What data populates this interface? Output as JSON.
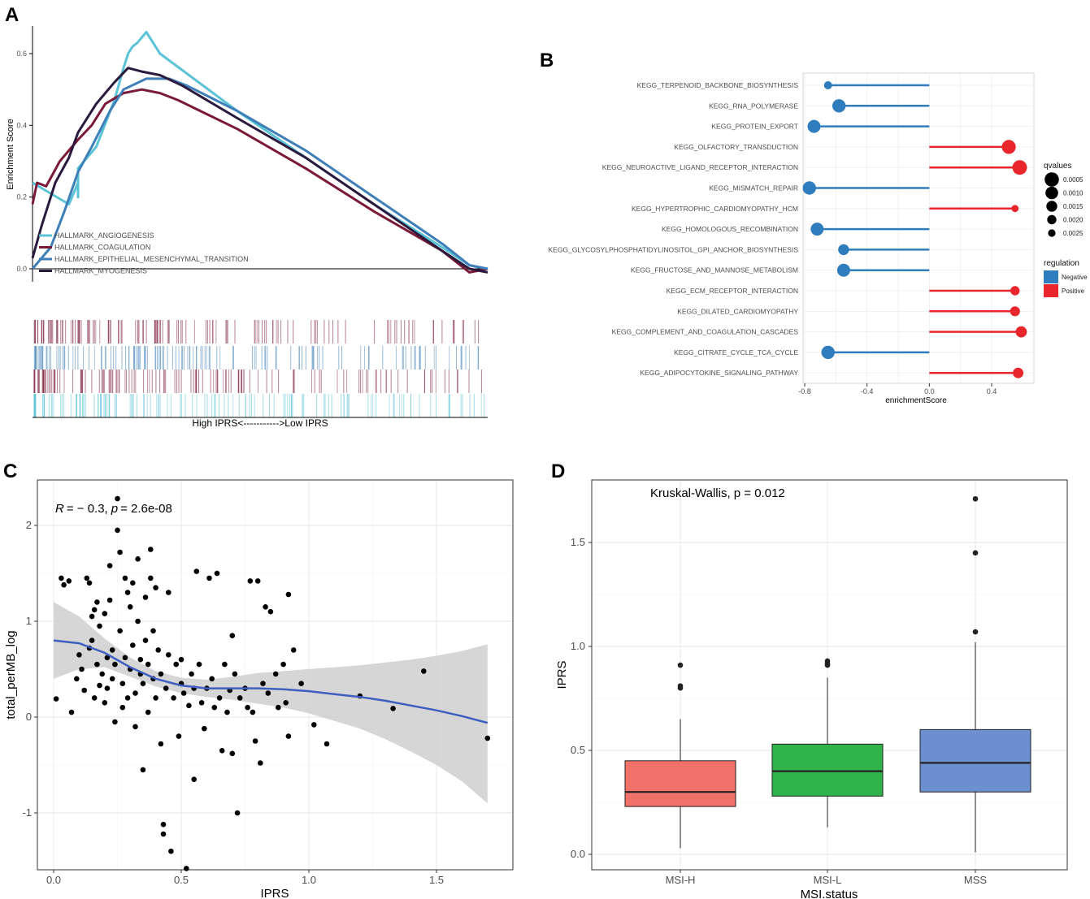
{
  "panel_labels": [
    "A",
    "B",
    "C",
    "D"
  ],
  "chart_data": [
    {
      "panel": "A",
      "type": "line",
      "title": "",
      "ylabel": "Enrichment Score",
      "xlabel": "High IPRS<----------->Low IPRS",
      "ylim": [
        -0.02,
        0.7
      ],
      "yticks": [
        "0.0",
        "0.2",
        "0.4",
        "0.6"
      ],
      "yticks_values": [
        0.0,
        0.2,
        0.4,
        0.6
      ],
      "legend_position": "bottom-left",
      "series": [
        {
          "name": "HALLMARK_ANGIOGENESIS",
          "color": "#5bc3d6",
          "points": [
            [
              0,
              0.24
            ],
            [
              0.08,
              0.18
            ],
            [
              0.1,
              0.24
            ],
            [
              0.1,
              0.2
            ],
            [
              0.1,
              0.28
            ],
            [
              0.14,
              0.34
            ],
            [
              0.18,
              0.47
            ],
            [
              0.2,
              0.56
            ],
            [
              0.21,
              0.6
            ],
            [
              0.22,
              0.62
            ],
            [
              0.23,
              0.63
            ],
            [
              0.25,
              0.66
            ],
            [
              0.26,
              0.64
            ],
            [
              0.28,
              0.6
            ],
            [
              0.45,
              0.44
            ],
            [
              0.6,
              0.31
            ],
            [
              0.75,
              0.18
            ],
            [
              0.9,
              0.06
            ],
            [
              0.96,
              0.01
            ],
            [
              1.0,
              0.0
            ]
          ]
        },
        {
          "name": "HALLMARK_COAGULATION",
          "color": "#7a1a36",
          "points": [
            [
              0,
              0.18
            ],
            [
              0.01,
              0.24
            ],
            [
              0.03,
              0.23
            ],
            [
              0.06,
              0.3
            ],
            [
              0.1,
              0.36
            ],
            [
              0.13,
              0.4
            ],
            [
              0.16,
              0.46
            ],
            [
              0.2,
              0.49
            ],
            [
              0.24,
              0.5
            ],
            [
              0.28,
              0.49
            ],
            [
              0.32,
              0.47
            ],
            [
              0.45,
              0.39
            ],
            [
              0.6,
              0.28
            ],
            [
              0.75,
              0.16
            ],
            [
              0.9,
              0.05
            ],
            [
              0.96,
              -0.01
            ],
            [
              1.0,
              0.0
            ]
          ]
        },
        {
          "name": "HALLMARK_EPITHELIAL_MESENCHYMAL_TRANSITION",
          "color": "#3f7fb8",
          "points": [
            [
              0,
              0.0
            ],
            [
              0.04,
              0.06
            ],
            [
              0.07,
              0.16
            ],
            [
              0.1,
              0.27
            ],
            [
              0.13,
              0.34
            ],
            [
              0.17,
              0.44
            ],
            [
              0.2,
              0.5
            ],
            [
              0.25,
              0.53
            ],
            [
              0.3,
              0.53
            ],
            [
              0.34,
              0.51
            ],
            [
              0.45,
              0.44
            ],
            [
              0.6,
              0.33
            ],
            [
              0.75,
              0.2
            ],
            [
              0.9,
              0.07
            ],
            [
              0.96,
              0.01
            ],
            [
              1.0,
              0.0
            ]
          ]
        },
        {
          "name": "HALLMARK_MYOGENESIS",
          "color": "#2b1a3e",
          "points": [
            [
              0,
              0.03
            ],
            [
              0.02,
              0.12
            ],
            [
              0.05,
              0.24
            ],
            [
              0.08,
              0.31
            ],
            [
              0.1,
              0.38
            ],
            [
              0.14,
              0.46
            ],
            [
              0.18,
              0.52
            ],
            [
              0.21,
              0.56
            ],
            [
              0.24,
              0.55
            ],
            [
              0.28,
              0.54
            ],
            [
              0.33,
              0.51
            ],
            [
              0.45,
              0.42
            ],
            [
              0.6,
              0.31
            ],
            [
              0.75,
              0.18
            ],
            [
              0.9,
              0.05
            ],
            [
              0.96,
              0.0
            ],
            [
              1.0,
              -0.01
            ]
          ]
        }
      ]
    },
    {
      "panel": "B",
      "type": "scatter",
      "title": "",
      "xlabel": "enrichmentScore",
      "ylabel": "",
      "xlim": [
        -0.85,
        0.6
      ],
      "xticks": [
        "-0.8",
        "-0.4",
        "0.0",
        "0.4"
      ],
      "xticks_values": [
        -0.8,
        -0.4,
        0.0,
        0.4
      ],
      "categories": [
        "KEGG_TERPENOID_BACKBONE_BIOSYNTHESIS",
        "KEGG_RNA_POLYMERASE",
        "KEGG_PROTEIN_EXPORT",
        "KEGG_OLFACTORY_TRANSDUCTION",
        "KEGG_NEUROACTIVE_LIGAND_RECEPTOR_INTERACTION",
        "KEGG_MISMATCH_REPAIR",
        "KEGG_HYPERTROPHIC_CARDIOMYOPATHY_HCM",
        "KEGG_HOMOLOGOUS_RECOMBINATION",
        "KEGG_GLYCOSYLPHOSPHATIDYLINOSITOL_GPI_ANCHOR_BIOSYNTHESIS",
        "KEGG_FRUCTOSE_AND_MANNOSE_METABOLISM",
        "KEGG_ECM_RECEPTOR_INTERACTION",
        "KEGG_DILATED_CARDIOMYOPATHY",
        "KEGG_COMPLEMENT_AND_COAGULATION_CASCADES",
        "KEGG_CITRATE_CYCLE_TCA_CYCLE",
        "KEGG_ADIPOCYTOKINE_SIGNALING_PATHWAY"
      ],
      "values": [
        -0.65,
        -0.58,
        -0.74,
        0.51,
        0.58,
        -0.77,
        0.55,
        -0.72,
        -0.55,
        -0.55,
        0.55,
        0.55,
        0.59,
        -0.65,
        0.57
      ],
      "qvalues": [
        0.0023,
        0.0008,
        0.0009,
        0.0006,
        0.0004,
        0.0008,
        0.0026,
        0.0009,
        0.0015,
        0.0009,
        0.002,
        0.0018,
        0.0014,
        0.0008,
        0.0016
      ],
      "regulation": [
        "Negative",
        "Negative",
        "Negative",
        "Positive",
        "Positive",
        "Negative",
        "Positive",
        "Negative",
        "Negative",
        "Negative",
        "Positive",
        "Positive",
        "Positive",
        "Negative",
        "Positive"
      ],
      "legend_qvalues_title": "qvalues",
      "legend_qvalues": [
        "0.0005",
        "0.0010",
        "0.0015",
        "0.0020",
        "0.0025"
      ],
      "legend_qvalues_values": [
        0.0005,
        0.001,
        0.0015,
        0.002,
        0.0025
      ],
      "legend_regulation_title": "regulation",
      "legend_regulation": [
        {
          "label": "Negative",
          "color": "#2f7dbd"
        },
        {
          "label": "Positive",
          "color": "#e8262b"
        }
      ]
    },
    {
      "panel": "C",
      "type": "scatter",
      "title": "",
      "xlabel": "IPRS",
      "ylabel": "total_perMB_log",
      "xlim": [
        -0.06,
        1.79
      ],
      "ylim": [
        -1.6,
        2.45
      ],
      "xticks": [
        "0.0",
        "0.5",
        "1.0",
        "1.5"
      ],
      "xticks_values": [
        0.0,
        0.5,
        1.0,
        1.5
      ],
      "yticks": [
        "-1",
        "0",
        "1",
        "2"
      ],
      "yticks_values": [
        -1,
        0,
        1,
        2
      ],
      "annotation": {
        "r_label": "R",
        "r_value": "= − 0.3,",
        "p_label": "p",
        "p_value": "= 2.6e-08"
      },
      "smooth_color": "#3f5fbf",
      "smooth": [
        [
          0.0,
          0.8
        ],
        [
          0.1,
          0.77
        ],
        [
          0.2,
          0.67
        ],
        [
          0.3,
          0.52
        ],
        [
          0.4,
          0.4
        ],
        [
          0.5,
          0.33
        ],
        [
          0.6,
          0.3
        ],
        [
          0.7,
          0.3
        ],
        [
          0.8,
          0.3
        ],
        [
          0.9,
          0.29
        ],
        [
          1.0,
          0.27
        ],
        [
          1.1,
          0.24
        ],
        [
          1.2,
          0.21
        ],
        [
          1.3,
          0.17
        ],
        [
          1.4,
          0.12
        ],
        [
          1.5,
          0.07
        ],
        [
          1.6,
          0.01
        ],
        [
          1.7,
          -0.06
        ]
      ],
      "band_upper": [
        [
          0.0,
          1.2
        ],
        [
          0.1,
          1.05
        ],
        [
          0.2,
          0.82
        ],
        [
          0.3,
          0.62
        ],
        [
          0.4,
          0.48
        ],
        [
          0.5,
          0.41
        ],
        [
          0.6,
          0.39
        ],
        [
          0.7,
          0.42
        ],
        [
          0.8,
          0.46
        ],
        [
          0.9,
          0.48
        ],
        [
          1.0,
          0.5
        ],
        [
          1.1,
          0.52
        ],
        [
          1.2,
          0.54
        ],
        [
          1.3,
          0.57
        ],
        [
          1.4,
          0.6
        ],
        [
          1.5,
          0.64
        ],
        [
          1.6,
          0.69
        ],
        [
          1.7,
          0.76
        ]
      ],
      "band_lower": [
        [
          0.0,
          0.4
        ],
        [
          0.1,
          0.5
        ],
        [
          0.2,
          0.52
        ],
        [
          0.3,
          0.42
        ],
        [
          0.4,
          0.32
        ],
        [
          0.5,
          0.25
        ],
        [
          0.6,
          0.21
        ],
        [
          0.7,
          0.18
        ],
        [
          0.8,
          0.14
        ],
        [
          0.9,
          0.1
        ],
        [
          1.0,
          0.04
        ],
        [
          1.1,
          -0.04
        ],
        [
          1.2,
          -0.12
        ],
        [
          1.3,
          -0.23
        ],
        [
          1.4,
          -0.36
        ],
        [
          1.5,
          -0.5
        ],
        [
          1.6,
          -0.67
        ],
        [
          1.7,
          -0.9
        ]
      ],
      "points": [
        [
          0.01,
          0.19
        ],
        [
          0.03,
          1.45
        ],
        [
          0.04,
          1.38
        ],
        [
          0.06,
          1.42
        ],
        [
          0.07,
          0.05
        ],
        [
          0.09,
          0.4
        ],
        [
          0.1,
          0.65
        ],
        [
          0.11,
          0.5
        ],
        [
          0.12,
          0.28
        ],
        [
          0.13,
          1.45
        ],
        [
          0.14,
          1.4
        ],
        [
          0.14,
          0.72
        ],
        [
          0.15,
          0.8
        ],
        [
          0.15,
          1.05
        ],
        [
          0.16,
          1.12
        ],
        [
          0.16,
          0.2
        ],
        [
          0.17,
          0.55
        ],
        [
          0.17,
          1.2
        ],
        [
          0.18,
          0.33
        ],
        [
          0.18,
          0.95
        ],
        [
          0.19,
          0.45
        ],
        [
          0.2,
          1.08
        ],
        [
          0.2,
          0.15
        ],
        [
          0.21,
          0.62
        ],
        [
          0.21,
          0.3
        ],
        [
          0.22,
          1.22
        ],
        [
          0.22,
          1.58
        ],
        [
          0.23,
          0.7
        ],
        [
          0.23,
          0.4
        ],
        [
          0.24,
          -0.05
        ],
        [
          0.24,
          0.55
        ],
        [
          0.25,
          2.28
        ],
        [
          0.25,
          1.95
        ],
        [
          0.26,
          1.72
        ],
        [
          0.26,
          0.9
        ],
        [
          0.27,
          0.35
        ],
        [
          0.27,
          0.1
        ],
        [
          0.28,
          1.45
        ],
        [
          0.28,
          0.62
        ],
        [
          0.29,
          1.3
        ],
        [
          0.29,
          0.2
        ],
        [
          0.3,
          1.15
        ],
        [
          0.3,
          0.5
        ],
        [
          0.31,
          1.4
        ],
        [
          0.31,
          0.75
        ],
        [
          0.32,
          0.25
        ],
        [
          0.32,
          -0.1
        ],
        [
          0.33,
          1.65
        ],
        [
          0.33,
          1.0
        ],
        [
          0.34,
          0.45
        ],
        [
          0.34,
          0.6
        ],
        [
          0.35,
          -0.55
        ],
        [
          0.35,
          0.35
        ],
        [
          0.36,
          1.25
        ],
        [
          0.36,
          0.8
        ],
        [
          0.37,
          0.05
        ],
        [
          0.37,
          0.55
        ],
        [
          0.38,
          1.75
        ],
        [
          0.38,
          1.45
        ],
        [
          0.39,
          0.4
        ],
        [
          0.39,
          0.9
        ],
        [
          0.4,
          1.35
        ],
        [
          0.4,
          0.2
        ],
        [
          0.41,
          0.7
        ],
        [
          0.42,
          -0.28
        ],
        [
          0.42,
          0.45
        ],
        [
          0.43,
          -1.12
        ],
        [
          0.43,
          -1.22
        ],
        [
          0.44,
          0.3
        ],
        [
          0.45,
          1.3
        ],
        [
          0.45,
          0.65
        ],
        [
          0.46,
          -1.4
        ],
        [
          0.47,
          0.2
        ],
        [
          0.48,
          0.55
        ],
        [
          0.49,
          -0.2
        ],
        [
          0.5,
          0.35
        ],
        [
          0.5,
          0.6
        ],
        [
          0.51,
          0.25
        ],
        [
          0.52,
          -1.58
        ],
        [
          0.53,
          0.12
        ],
        [
          0.54,
          0.45
        ],
        [
          0.55,
          -0.65
        ],
        [
          0.55,
          0.3
        ],
        [
          0.56,
          1.52
        ],
        [
          0.57,
          0.55
        ],
        [
          0.58,
          0.15
        ],
        [
          0.59,
          -0.12
        ],
        [
          0.6,
          0.3
        ],
        [
          0.61,
          1.45
        ],
        [
          0.62,
          0.4
        ],
        [
          0.63,
          0.1
        ],
        [
          0.64,
          1.5
        ],
        [
          0.65,
          0.2
        ],
        [
          0.66,
          -0.35
        ],
        [
          0.67,
          0.55
        ],
        [
          0.68,
          0.05
        ],
        [
          0.69,
          0.28
        ],
        [
          0.7,
          0.85
        ],
        [
          0.7,
          -0.38
        ],
        [
          0.71,
          0.45
        ],
        [
          0.72,
          -1.0
        ],
        [
          0.73,
          0.2
        ],
        [
          0.75,
          0.3
        ],
        [
          0.76,
          0.1
        ],
        [
          0.77,
          1.42
        ],
        [
          0.78,
          0.05
        ],
        [
          0.79,
          -0.25
        ],
        [
          0.8,
          1.42
        ],
        [
          0.81,
          -0.48
        ],
        [
          0.82,
          0.35
        ],
        [
          0.83,
          1.15
        ],
        [
          0.84,
          0.25
        ],
        [
          0.85,
          1.1
        ],
        [
          0.87,
          0.45
        ],
        [
          0.88,
          0.1
        ],
        [
          0.9,
          0.55
        ],
        [
          0.91,
          0.15
        ],
        [
          0.92,
          1.28
        ],
        [
          0.92,
          -0.2
        ],
        [
          0.94,
          0.7
        ],
        [
          0.97,
          0.35
        ],
        [
          1.02,
          -0.08
        ],
        [
          1.07,
          -0.28
        ],
        [
          1.2,
          0.22
        ],
        [
          1.33,
          0.09
        ],
        [
          1.45,
          0.48
        ],
        [
          1.7,
          -0.22
        ]
      ]
    },
    {
      "panel": "D",
      "type": "bar",
      "subtype": "boxplot",
      "title": "",
      "annotation": "Kruskal-Wallis, p = 0.012",
      "xlabel": "MSI.status",
      "ylabel": "IPRS",
      "ylim": [
        -0.05,
        1.8
      ],
      "yticks": [
        "0.0",
        "0.5",
        "1.0",
        "1.5"
      ],
      "yticks_values": [
        0.0,
        0.5,
        1.0,
        1.5
      ],
      "categories": [
        "MSI-H",
        "MSI-L",
        "MSS"
      ],
      "boxes": [
        {
          "name": "MSI-H",
          "color": "#f0706a",
          "min": 0.03,
          "q1": 0.23,
          "median": 0.3,
          "q3": 0.45,
          "max": 0.65,
          "outliers": [
            0.8,
            0.81,
            0.91
          ]
        },
        {
          "name": "MSI-L",
          "color": "#2fb34a",
          "min": 0.13,
          "q1": 0.28,
          "median": 0.4,
          "q3": 0.53,
          "max": 0.85,
          "outliers": [
            0.91,
            0.92,
            0.93
          ]
        },
        {
          "name": "MSS",
          "color": "#6b8fcf",
          "min": 0.01,
          "q1": 0.3,
          "median": 0.44,
          "q3": 0.6,
          "max": 1.02,
          "outliers": [
            1.07,
            1.45,
            1.71
          ]
        }
      ]
    }
  ]
}
